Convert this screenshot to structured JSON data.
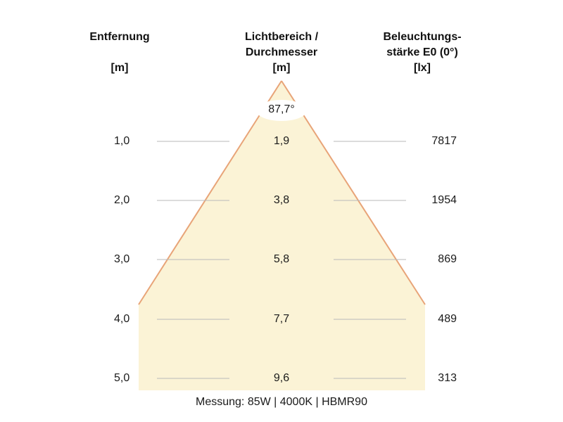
{
  "headers": {
    "distance": {
      "line1": "Entfernung",
      "unit": "[m]"
    },
    "diameter": {
      "line1": "Lichtbereich /",
      "line2": "Durchmesser",
      "unit": "[m]"
    },
    "illuminance": {
      "line1": "Beleuchtungs-",
      "line2": "stärke E0 (0°)",
      "unit": "[lx]"
    }
  },
  "beam_angle": "87,7°",
  "rows": [
    {
      "distance": "1,0",
      "diameter": "1,9",
      "illuminance": "7817"
    },
    {
      "distance": "2,0",
      "diameter": "3,8",
      "illuminance": "1954"
    },
    {
      "distance": "3,0",
      "diameter": "5,8",
      "illuminance": "869"
    },
    {
      "distance": "4,0",
      "diameter": "7,7",
      "illuminance": "489"
    },
    {
      "distance": "5,0",
      "diameter": "9,6",
      "illuminance": "313"
    }
  ],
  "footer": "Messung: 85W | 4000K | HBMR90",
  "colors": {
    "beam_fill": "#fbf3d6",
    "beam_edge": "#e8a478",
    "guide_line": "#b9b9b9"
  }
}
